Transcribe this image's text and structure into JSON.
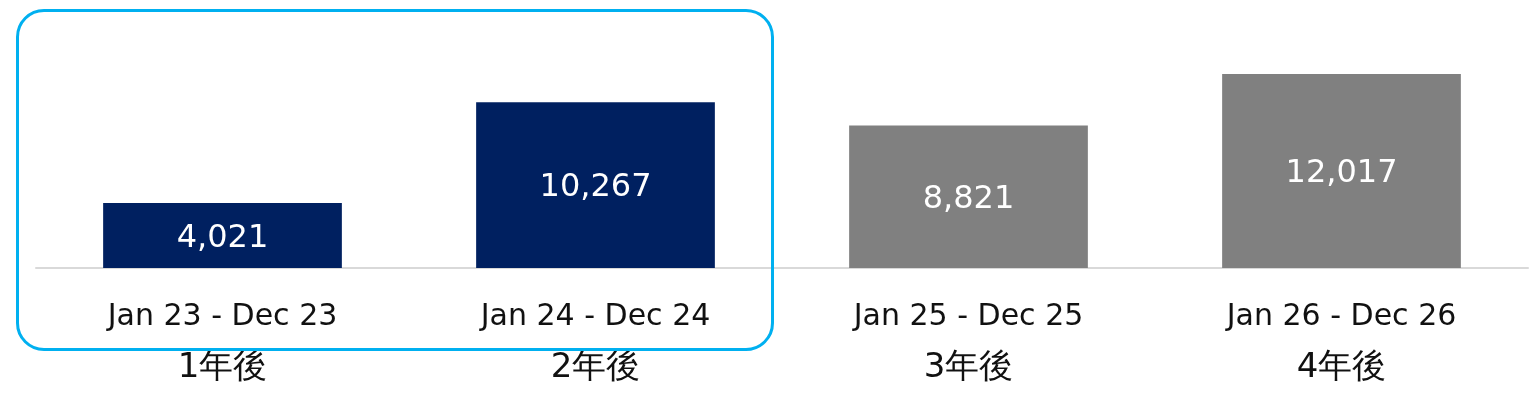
{
  "chart_data": {
    "type": "bar",
    "categories": [
      "Jan 23 - Dec 23\n1年後",
      "Jan 24 - Dec 24\n2年後",
      "Jan 25 - Dec 25\n3年後",
      "Jan 26 - Dec 26\n4年後"
    ],
    "values": [
      4021,
      10267,
      8821,
      12017
    ],
    "value_labels": [
      "4,021",
      "10,267",
      "8,821",
      "12,017"
    ],
    "colors": [
      "#002060",
      "#002060",
      "#808080",
      "#808080"
    ],
    "grid": false
  }
}
